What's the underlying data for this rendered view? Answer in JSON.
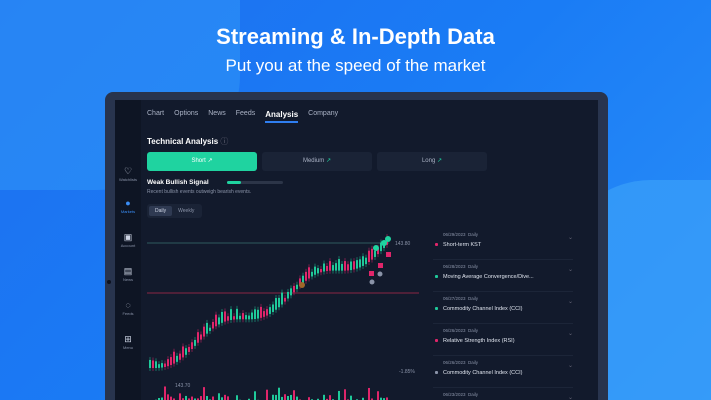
{
  "promo": {
    "headline": "Streaming & In-Depth Data",
    "subheadline": "Put you at the speed of the market"
  },
  "sidebar": [
    {
      "label": "Watchlists",
      "icon": "heart-icon",
      "active": false
    },
    {
      "label": "Markets",
      "icon": "globe-icon",
      "active": true
    },
    {
      "label": "Account",
      "icon": "wallet-icon",
      "active": false
    },
    {
      "label": "News",
      "icon": "news-icon",
      "active": false
    },
    {
      "label": "Feeds",
      "icon": "chat-icon",
      "active": false
    },
    {
      "label": "Menu",
      "icon": "grid-icon",
      "active": false
    }
  ],
  "tabs": [
    {
      "label": "Chart"
    },
    {
      "label": "Options"
    },
    {
      "label": "News"
    },
    {
      "label": "Feeds"
    },
    {
      "label": "Analysis",
      "active": true
    },
    {
      "label": "Company"
    }
  ],
  "technical": {
    "title": "Technical Analysis",
    "terms": [
      {
        "label": "Short",
        "active": true
      },
      {
        "label": "Medium"
      },
      {
        "label": "Long"
      }
    ],
    "signal": "Weak Bullish Signal",
    "signal_level": 0.25,
    "signal_desc": "Recent bullish events outweigh bearish events.",
    "periods": [
      {
        "label": "Daily",
        "active": true
      },
      {
        "label": "Weekly"
      }
    ]
  },
  "chart": {
    "price_label_high": "143.80",
    "price_label_low": "143.70",
    "change_label": "-1.85%",
    "colors": {
      "up": "#1fc99a",
      "down": "#e0256a",
      "high_line": "#2d5a5e",
      "low_line": "#8a2545"
    }
  },
  "events": [
    {
      "date": "06/29/2023",
      "period": "Daily",
      "name": "Short-term KST",
      "color": "#e0256a"
    },
    {
      "date": "06/28/2023",
      "period": "Daily",
      "name": "Moving Average Convergence/Dive...",
      "color": "#1fc99a"
    },
    {
      "date": "06/27/2023",
      "period": "Daily",
      "name": "Commodity Channel Index (CCI)",
      "color": "#1fc99a"
    },
    {
      "date": "06/26/2023",
      "period": "Daily",
      "name": "Relative Strength Index (RSI)",
      "color": "#e0256a"
    },
    {
      "date": "06/26/2023",
      "period": "Daily",
      "name": "Commodity Channel Index (CCI)",
      "color": "#8a93a8"
    },
    {
      "date": "06/23/2023",
      "period": "Daily",
      "name": "",
      "color": "#8a93a8"
    }
  ]
}
